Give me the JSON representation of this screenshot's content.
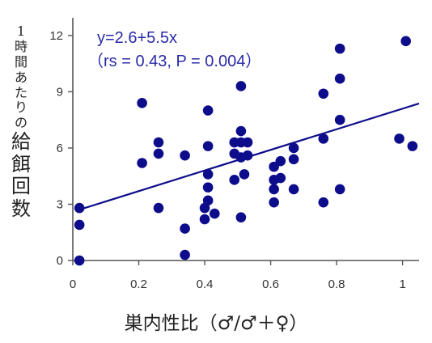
{
  "chart_data": {
    "type": "scatter",
    "ylabel_chars": [
      "1",
      "時",
      "間",
      "あ",
      "た",
      "り",
      "の",
      "給",
      "餌",
      "回",
      "数"
    ],
    "xlabel": "巣内性比（♂/♂＋♀）",
    "annotation_equation": "y=2.6+5.5x",
    "annotation_stats": "（rs = 0.43, P = 0.004）",
    "xlim": [
      0,
      1.05
    ],
    "ylim": [
      0,
      12.6
    ],
    "x_ticks": [
      0,
      0.2,
      0.4,
      0.6,
      0.8,
      1
    ],
    "x_tick_labels": [
      "0",
      "0.2",
      "0.4",
      "0.6",
      "0.8",
      "1"
    ],
    "y_ticks": [
      0,
      3,
      6,
      9,
      12
    ],
    "y_tick_labels": [
      "0",
      "3",
      "6",
      "9",
      "12"
    ],
    "regression": {
      "intercept": 2.6,
      "slope": 5.5
    },
    "colors": {
      "points": "#0d0d8c",
      "line": "#0d0d8c",
      "axis": "#555555"
    },
    "points": [
      [
        0.02,
        2.8
      ],
      [
        0.02,
        1.9
      ],
      [
        0.02,
        0.0
      ],
      [
        0.21,
        8.4
      ],
      [
        0.21,
        5.2
      ],
      [
        0.26,
        6.3
      ],
      [
        0.26,
        5.7
      ],
      [
        0.26,
        2.8
      ],
      [
        0.34,
        5.6
      ],
      [
        0.34,
        1.7
      ],
      [
        0.34,
        0.3
      ],
      [
        0.4,
        2.8
      ],
      [
        0.4,
        2.2
      ],
      [
        0.41,
        8.0
      ],
      [
        0.41,
        6.1
      ],
      [
        0.41,
        4.6
      ],
      [
        0.41,
        3.9
      ],
      [
        0.41,
        3.2
      ],
      [
        0.43,
        2.5
      ],
      [
        0.49,
        6.3
      ],
      [
        0.49,
        5.7
      ],
      [
        0.49,
        4.3
      ],
      [
        0.51,
        9.3
      ],
      [
        0.51,
        6.9
      ],
      [
        0.51,
        6.3
      ],
      [
        0.51,
        5.5
      ],
      [
        0.51,
        2.3
      ],
      [
        0.52,
        4.6
      ],
      [
        0.53,
        6.3
      ],
      [
        0.53,
        5.6
      ],
      [
        0.61,
        5.0
      ],
      [
        0.61,
        4.3
      ],
      [
        0.61,
        3.8
      ],
      [
        0.61,
        3.1
      ],
      [
        0.63,
        5.3
      ],
      [
        0.63,
        4.4
      ],
      [
        0.67,
        6.0
      ],
      [
        0.67,
        5.4
      ],
      [
        0.67,
        3.8
      ],
      [
        0.76,
        8.9
      ],
      [
        0.76,
        6.5
      ],
      [
        0.76,
        3.1
      ],
      [
        0.81,
        11.3
      ],
      [
        0.81,
        9.7
      ],
      [
        0.81,
        7.5
      ],
      [
        0.81,
        3.8
      ],
      [
        0.99,
        6.5
      ],
      [
        1.01,
        11.7
      ],
      [
        1.03,
        6.1
      ]
    ]
  }
}
